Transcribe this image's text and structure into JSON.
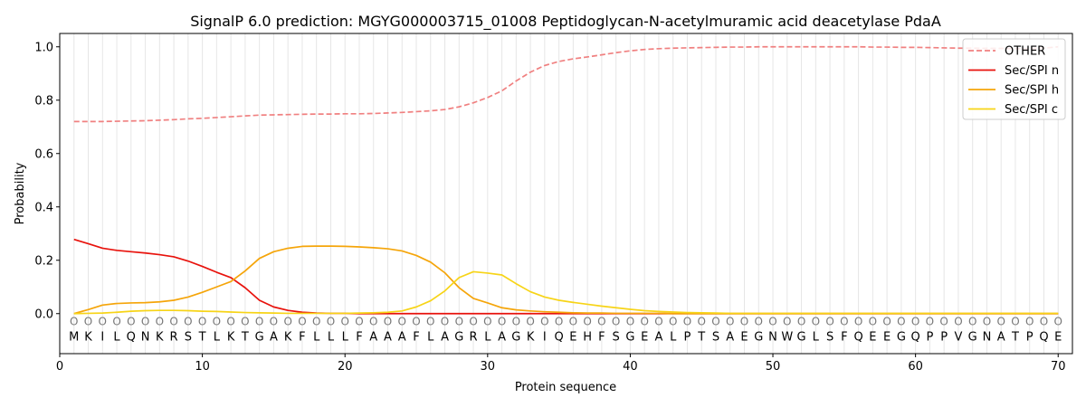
{
  "chart_data": {
    "type": "line",
    "title": "SignalP 6.0 prediction: MGYG000003715_01008 Peptidoglycan-N-acetylmuramic acid deacetylase PdaA",
    "xlabel": "Protein sequence",
    "ylabel": "Probability",
    "xlim": [
      0,
      71
    ],
    "ylim": [
      -0.15,
      1.05
    ],
    "xticks": [
      0,
      10,
      20,
      30,
      40,
      50,
      60,
      70
    ],
    "yticks": [
      0.0,
      0.2,
      0.4,
      0.6,
      0.8,
      1.0
    ],
    "xtick_labels": [
      "0",
      "10",
      "20",
      "30",
      "40",
      "50",
      "60",
      "70"
    ],
    "ytick_labels": [
      "0.0",
      "0.2",
      "0.4",
      "0.6",
      "0.8",
      "1.0"
    ],
    "legend_position": "top-right",
    "grid": "vertical lines at each residue",
    "sequence": [
      "M",
      "K",
      "I",
      "L",
      "Q",
      "N",
      "K",
      "R",
      "S",
      "T",
      "L",
      "K",
      "T",
      "G",
      "A",
      "K",
      "F",
      "L",
      "L",
      "L",
      "F",
      "A",
      "A",
      "A",
      "F",
      "L",
      "A",
      "G",
      "R",
      "L",
      "A",
      "G",
      "K",
      "I",
      "Q",
      "E",
      "H",
      "F",
      "S",
      "G",
      "E",
      "A",
      "L",
      "P",
      "T",
      "S",
      "A",
      "E",
      "G",
      "N",
      "W",
      "G",
      "L",
      "S",
      "F",
      "Q",
      "E",
      "E",
      "G",
      "Q",
      "P",
      "P",
      "V",
      "G",
      "N",
      "A",
      "T",
      "P",
      "Q",
      "E"
    ],
    "marker_symbol": "O",
    "series": [
      {
        "name": "OTHER",
        "color": "#f08080",
        "dashed": true,
        "values": [
          0.72,
          0.72,
          0.72,
          0.721,
          0.722,
          0.723,
          0.725,
          0.727,
          0.73,
          0.732,
          0.735,
          0.738,
          0.741,
          0.744,
          0.745,
          0.746,
          0.747,
          0.748,
          0.748,
          0.749,
          0.749,
          0.75,
          0.752,
          0.754,
          0.757,
          0.76,
          0.765,
          0.775,
          0.79,
          0.81,
          0.835,
          0.872,
          0.905,
          0.93,
          0.945,
          0.955,
          0.962,
          0.97,
          0.978,
          0.985,
          0.99,
          0.993,
          0.995,
          0.996,
          0.997,
          0.998,
          0.999,
          0.999,
          1.0,
          1.0,
          1.0,
          1.0,
          1.0,
          1.0,
          1.0,
          1.0,
          0.999,
          0.999,
          0.998,
          0.998,
          0.997,
          0.996,
          0.995,
          0.995,
          0.994,
          0.994,
          0.993,
          0.993,
          0.995,
          1.0
        ]
      },
      {
        "name": "Sec/SPI n",
        "color": "#e8120c",
        "dashed": false,
        "values": [
          0.278,
          0.262,
          0.245,
          0.237,
          0.232,
          0.227,
          0.221,
          0.213,
          0.197,
          0.177,
          0.155,
          0.135,
          0.097,
          0.05,
          0.025,
          0.012,
          0.005,
          0.002,
          0.001,
          0.001,
          0.0,
          0.0,
          0.0,
          0.0,
          0.0,
          0.0,
          0.0,
          0.0,
          0.0,
          0.0,
          0.0,
          0.0,
          0.0,
          0.0,
          0.0,
          0.0,
          0.0,
          0.0,
          0.0,
          0.0,
          0.0,
          0.0,
          0.0,
          0.0,
          0.0,
          0.0,
          0.0,
          0.0,
          0.0,
          0.0,
          0.0,
          0.0,
          0.0,
          0.0,
          0.0,
          0.0,
          0.0,
          0.0,
          0.0,
          0.0,
          0.0,
          0.0,
          0.0,
          0.0,
          0.0,
          0.0,
          0.0,
          0.0,
          0.0,
          0.0
        ]
      },
      {
        "name": "Sec/SPI h",
        "color": "#f5a50a",
        "dashed": false,
        "values": [
          0.0,
          0.015,
          0.032,
          0.038,
          0.04,
          0.041,
          0.044,
          0.05,
          0.062,
          0.08,
          0.1,
          0.12,
          0.16,
          0.207,
          0.232,
          0.245,
          0.252,
          0.253,
          0.253,
          0.252,
          0.25,
          0.247,
          0.243,
          0.235,
          0.218,
          0.193,
          0.153,
          0.097,
          0.057,
          0.04,
          0.022,
          0.014,
          0.01,
          0.007,
          0.005,
          0.003,
          0.002,
          0.002,
          0.001,
          0.001,
          0.001,
          0.001,
          0.0,
          0.0,
          0.0,
          0.0,
          0.0,
          0.0,
          0.0,
          0.0,
          0.0,
          0.0,
          0.0,
          0.0,
          0.0,
          0.0,
          0.0,
          0.0,
          0.0,
          0.0,
          0.0,
          0.0,
          0.0,
          0.0,
          0.0,
          0.0,
          0.0,
          0.0,
          0.0,
          0.0
        ]
      },
      {
        "name": "Sec/SPI c",
        "color": "#f7d417",
        "dashed": false,
        "values": [
          0.0,
          0.001,
          0.002,
          0.005,
          0.009,
          0.011,
          0.012,
          0.012,
          0.011,
          0.009,
          0.008,
          0.006,
          0.004,
          0.003,
          0.002,
          0.001,
          0.001,
          0.001,
          0.001,
          0.001,
          0.002,
          0.003,
          0.005,
          0.01,
          0.025,
          0.048,
          0.085,
          0.135,
          0.157,
          0.152,
          0.145,
          0.112,
          0.082,
          0.062,
          0.05,
          0.042,
          0.035,
          0.028,
          0.022,
          0.016,
          0.011,
          0.008,
          0.006,
          0.004,
          0.003,
          0.002,
          0.001,
          0.001,
          0.001,
          0.001,
          0.001,
          0.001,
          0.001,
          0.001,
          0.001,
          0.001,
          0.001,
          0.001,
          0.001,
          0.001,
          0.001,
          0.001,
          0.001,
          0.001,
          0.001,
          0.001,
          0.001,
          0.001,
          0.001,
          0.001
        ]
      }
    ]
  }
}
